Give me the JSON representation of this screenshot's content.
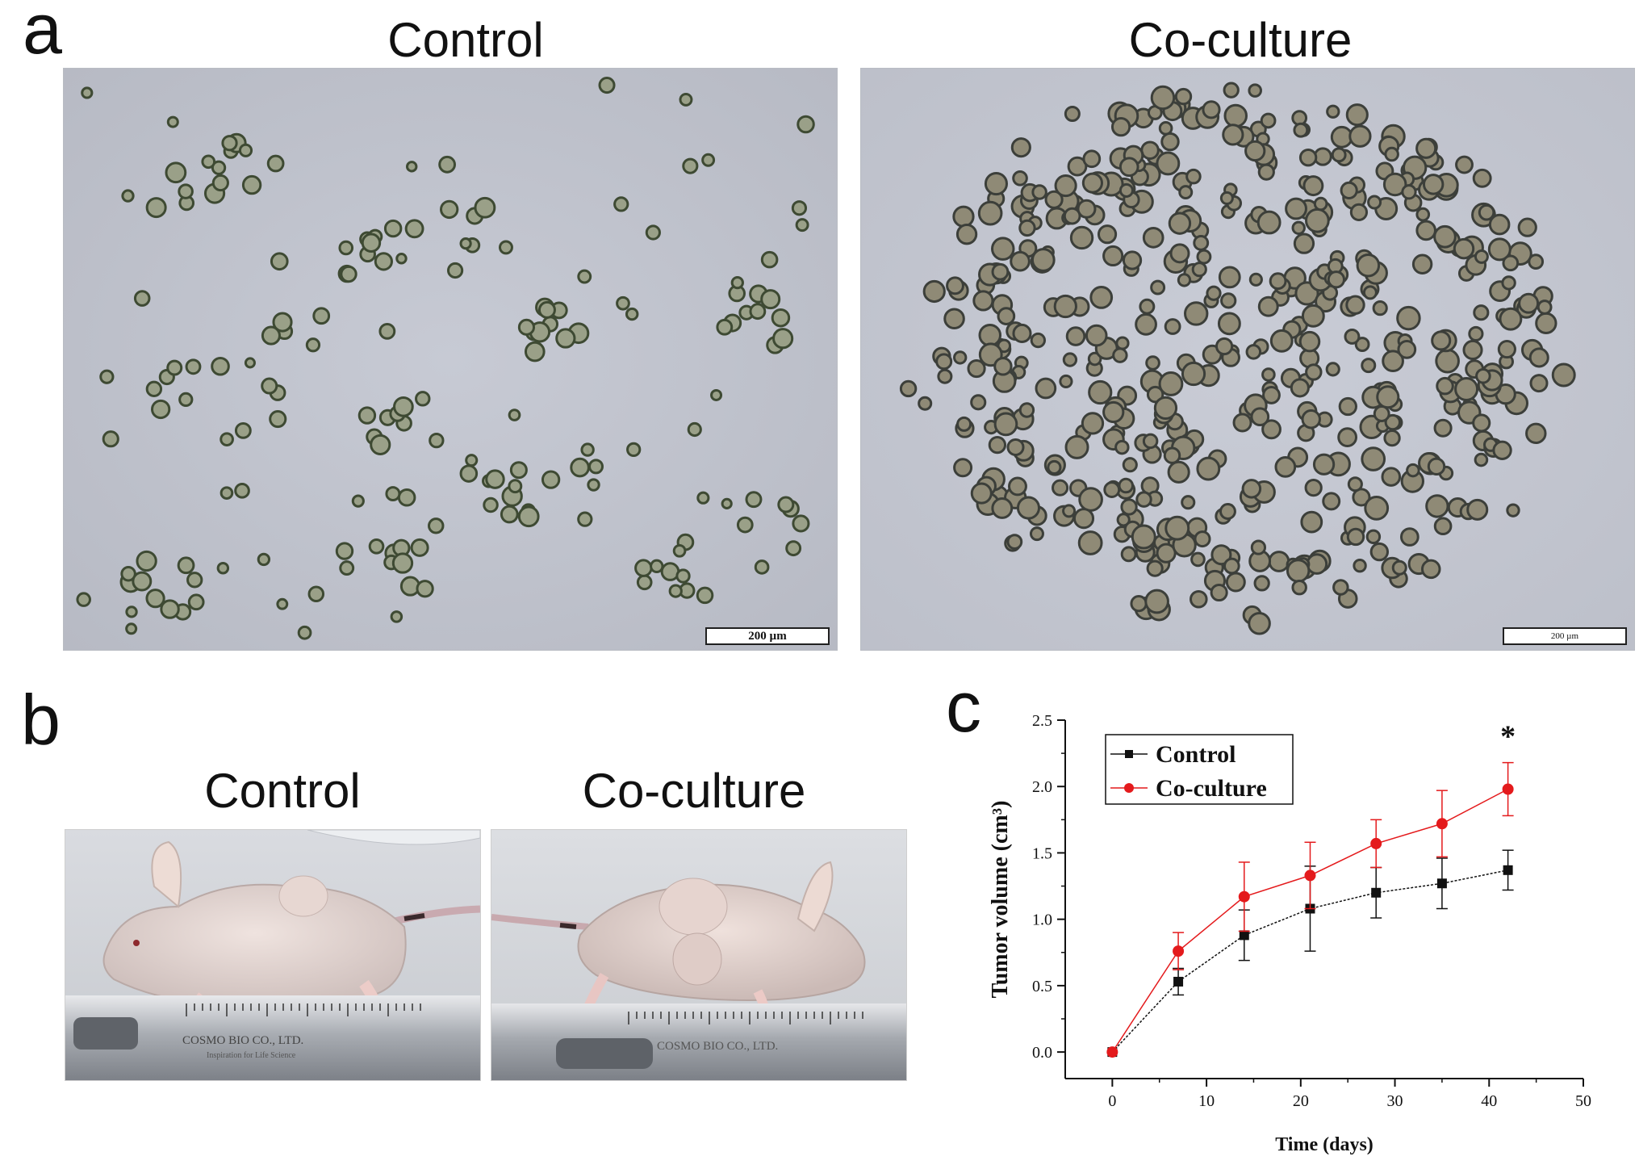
{
  "figure": {
    "panels": {
      "a": {
        "letter": "a",
        "images": [
          {
            "title": "Control",
            "scale_bar": "200 µm"
          },
          {
            "title": "Co-culture",
            "scale_bar": "200 µm"
          }
        ]
      },
      "b": {
        "letter": "b",
        "images": [
          {
            "title": "Control",
            "ruler_text": "COSMO BIO CO., LTD.",
            "ruler_subtext": "Inspiration for Life Science"
          },
          {
            "title": "Co-culture",
            "ruler_text": "COSMO BIO CO., LTD."
          }
        ]
      },
      "c": {
        "letter": "c"
      }
    }
  },
  "chart_data": {
    "type": "line",
    "xlabel": "Time (days)",
    "ylabel": "Tumor volume (cm³)",
    "xlim": [
      -5,
      50
    ],
    "ylim": [
      -0.2,
      2.5
    ],
    "xticks": [
      0,
      10,
      20,
      30,
      40,
      50
    ],
    "yticks": [
      0.0,
      0.5,
      1.0,
      1.5,
      2.0,
      2.5
    ],
    "xtick_labels": [
      "0",
      "10",
      "20",
      "30",
      "40",
      "50"
    ],
    "ytick_labels": [
      "0.0",
      "0.5",
      "1.0",
      "1.5",
      "2.0",
      "2.5"
    ],
    "x": [
      0,
      7,
      14,
      21,
      28,
      35,
      42
    ],
    "series": [
      {
        "name": "Control",
        "color": "#111111",
        "marker": "square",
        "values": [
          0.0,
          0.53,
          0.88,
          1.08,
          1.2,
          1.27,
          1.37
        ],
        "errors": [
          0.0,
          0.1,
          0.19,
          0.32,
          0.19,
          0.19,
          0.15
        ]
      },
      {
        "name": "Co-culture",
        "color": "#e41a1c",
        "marker": "circle",
        "values": [
          0.0,
          0.76,
          1.17,
          1.33,
          1.57,
          1.72,
          1.98
        ],
        "errors": [
          0.0,
          0.14,
          0.26,
          0.25,
          0.18,
          0.25,
          0.2
        ]
      }
    ],
    "legend": {
      "placement": "top-left"
    },
    "annotations": [
      {
        "text": "*",
        "x": 42
      }
    ],
    "grid": false
  }
}
